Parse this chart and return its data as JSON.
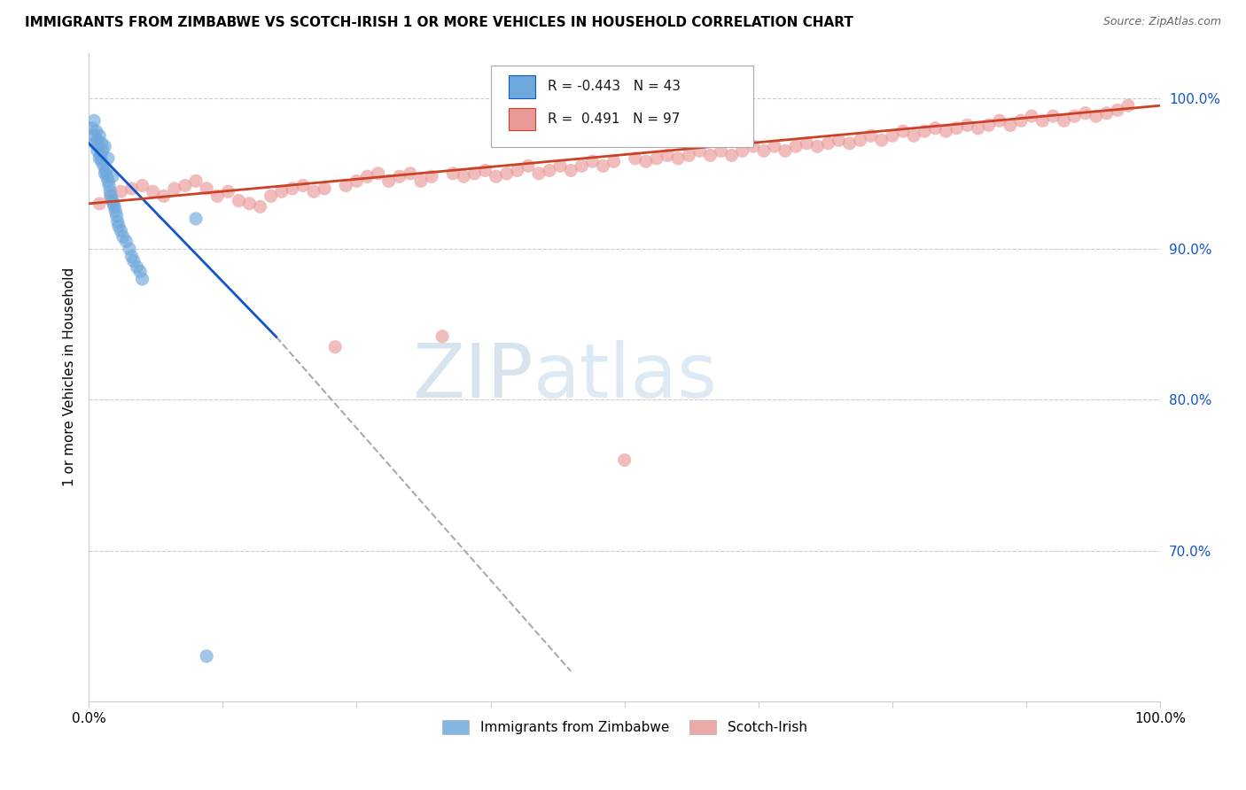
{
  "title": "IMMIGRANTS FROM ZIMBABWE VS SCOTCH-IRISH 1 OR MORE VEHICLES IN HOUSEHOLD CORRELATION CHART",
  "source": "Source: ZipAtlas.com",
  "ylabel": "1 or more Vehicles in Household",
  "watermark_zip": "ZIP",
  "watermark_atlas": "atlas",
  "xlim": [
    0.0,
    1.0
  ],
  "ylim": [
    0.6,
    1.03
  ],
  "yticks": [
    0.7,
    0.8,
    0.9,
    1.0
  ],
  "ytick_labels": [
    "70.0%",
    "80.0%",
    "90.0%",
    "100.0%"
  ],
  "xtick_positions": [
    0.0,
    0.125,
    0.25,
    0.375,
    0.5,
    0.625,
    0.75,
    0.875,
    1.0
  ],
  "xtick_labels_show": [
    "0.0%",
    "",
    "",
    "",
    "",
    "",
    "",
    "",
    "100.0%"
  ],
  "legend_R_blue": "-0.443",
  "legend_N_blue": "43",
  "legend_R_pink": "0.491",
  "legend_N_pink": "97",
  "blue_color": "#6fa8dc",
  "pink_color": "#ea9999",
  "blue_trend_color": "#1155cc",
  "pink_trend_color": "#cc4125",
  "gray_dash_color": "#aaaaaa",
  "blue_scatter_x": [
    0.003,
    0.005,
    0.005,
    0.006,
    0.007,
    0.008,
    0.008,
    0.009,
    0.01,
    0.01,
    0.011,
    0.012,
    0.012,
    0.013,
    0.014,
    0.015,
    0.015,
    0.016,
    0.017,
    0.018,
    0.018,
    0.019,
    0.02,
    0.021,
    0.022,
    0.022,
    0.023,
    0.024,
    0.025,
    0.026,
    0.027,
    0.028,
    0.03,
    0.032,
    0.035,
    0.038,
    0.04,
    0.042,
    0.045,
    0.048,
    0.05,
    0.1,
    0.11
  ],
  "blue_scatter_y": [
    0.98,
    0.985,
    0.975,
    0.97,
    0.978,
    0.965,
    0.972,
    0.968,
    0.96,
    0.975,
    0.962,
    0.958,
    0.97,
    0.965,
    0.955,
    0.95,
    0.968,
    0.952,
    0.948,
    0.945,
    0.96,
    0.942,
    0.938,
    0.935,
    0.932,
    0.948,
    0.93,
    0.928,
    0.925,
    0.922,
    0.918,
    0.915,
    0.912,
    0.908,
    0.905,
    0.9,
    0.895,
    0.892,
    0.888,
    0.885,
    0.88,
    0.92,
    0.63
  ],
  "pink_scatter_x": [
    0.01,
    0.02,
    0.03,
    0.04,
    0.05,
    0.06,
    0.07,
    0.08,
    0.09,
    0.1,
    0.11,
    0.12,
    0.13,
    0.14,
    0.15,
    0.16,
    0.17,
    0.18,
    0.19,
    0.2,
    0.21,
    0.22,
    0.23,
    0.24,
    0.25,
    0.26,
    0.27,
    0.28,
    0.29,
    0.3,
    0.31,
    0.32,
    0.33,
    0.34,
    0.35,
    0.36,
    0.37,
    0.38,
    0.39,
    0.4,
    0.41,
    0.42,
    0.43,
    0.44,
    0.45,
    0.46,
    0.47,
    0.48,
    0.49,
    0.5,
    0.51,
    0.52,
    0.53,
    0.54,
    0.55,
    0.56,
    0.57,
    0.58,
    0.59,
    0.6,
    0.61,
    0.62,
    0.63,
    0.64,
    0.65,
    0.66,
    0.67,
    0.68,
    0.69,
    0.7,
    0.71,
    0.72,
    0.73,
    0.74,
    0.75,
    0.76,
    0.77,
    0.78,
    0.79,
    0.8,
    0.81,
    0.82,
    0.83,
    0.84,
    0.85,
    0.86,
    0.87,
    0.88,
    0.89,
    0.9,
    0.91,
    0.92,
    0.93,
    0.94,
    0.95,
    0.96,
    0.97
  ],
  "pink_scatter_y": [
    0.93,
    0.935,
    0.938,
    0.94,
    0.942,
    0.938,
    0.935,
    0.94,
    0.942,
    0.945,
    0.94,
    0.935,
    0.938,
    0.932,
    0.93,
    0.928,
    0.935,
    0.938,
    0.94,
    0.942,
    0.938,
    0.94,
    0.835,
    0.942,
    0.945,
    0.948,
    0.95,
    0.945,
    0.948,
    0.95,
    0.945,
    0.948,
    0.842,
    0.95,
    0.948,
    0.95,
    0.952,
    0.948,
    0.95,
    0.952,
    0.955,
    0.95,
    0.952,
    0.955,
    0.952,
    0.955,
    0.958,
    0.955,
    0.958,
    0.76,
    0.96,
    0.958,
    0.96,
    0.962,
    0.96,
    0.962,
    0.965,
    0.962,
    0.965,
    0.962,
    0.965,
    0.968,
    0.965,
    0.968,
    0.965,
    0.968,
    0.97,
    0.968,
    0.97,
    0.972,
    0.97,
    0.972,
    0.975,
    0.972,
    0.975,
    0.978,
    0.975,
    0.978,
    0.98,
    0.978,
    0.98,
    0.982,
    0.98,
    0.982,
    0.985,
    0.982,
    0.985,
    0.988,
    0.985,
    0.988,
    0.985,
    0.988,
    0.99,
    0.988,
    0.99,
    0.992,
    0.995
  ],
  "blue_trend_x0": 0.0,
  "blue_trend_y0": 0.97,
  "blue_trend_x1": 0.3,
  "blue_trend_y1": 0.75,
  "pink_trend_x0": 0.0,
  "pink_trend_y0": 0.93,
  "pink_trend_x1": 1.0,
  "pink_trend_y1": 0.995,
  "background_color": "#ffffff",
  "grid_color": "#cccccc",
  "spine_color": "#cccccc",
  "title_fontsize": 11,
  "label_fontsize": 11,
  "tick_fontsize": 11,
  "scatter_size": 120,
  "scatter_alpha": 0.65
}
